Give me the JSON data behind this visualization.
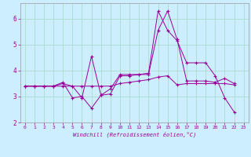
{
  "xlabel": "Windchill (Refroidissement éolien,°C)",
  "bg_color": "#cceeff",
  "grid_color": "#aaddcc",
  "line_color": "#990099",
  "xlim": [
    -0.5,
    23.5
  ],
  "ylim": [
    2.0,
    6.6
  ],
  "yticks": [
    2,
    3,
    4,
    5,
    6
  ],
  "xticks": [
    0,
    1,
    2,
    3,
    4,
    5,
    6,
    7,
    8,
    9,
    10,
    11,
    12,
    13,
    14,
    15,
    16,
    17,
    18,
    19,
    20,
    21,
    22,
    23
  ],
  "series": [
    {
      "x": [
        0,
        1,
        2,
        3,
        4,
        5,
        6,
        7,
        8,
        9,
        10,
        11,
        12,
        13,
        14,
        15,
        16,
        17,
        18,
        19,
        20,
        21,
        22
      ],
      "y": [
        3.4,
        3.4,
        3.4,
        3.4,
        3.55,
        2.95,
        3.0,
        2.55,
        3.05,
        3.1,
        3.8,
        3.8,
        3.85,
        3.9,
        6.3,
        5.55,
        5.15,
        4.3,
        4.3,
        4.3,
        3.8,
        2.95,
        2.4
      ]
    },
    {
      "x": [
        0,
        1,
        2,
        3,
        4,
        5,
        6,
        7,
        8,
        9,
        10,
        11,
        12,
        13,
        14,
        15,
        16,
        17,
        18,
        19,
        20,
        21,
        22
      ],
      "y": [
        3.4,
        3.4,
        3.4,
        3.4,
        3.5,
        3.4,
        2.95,
        4.55,
        3.05,
        3.3,
        3.85,
        3.85,
        3.85,
        3.85,
        5.55,
        6.3,
        5.2,
        3.6,
        3.6,
        3.6,
        3.55,
        3.7,
        3.5
      ]
    },
    {
      "x": [
        0,
        1,
        2,
        3,
        4,
        5,
        6,
        7,
        8,
        9,
        10,
        11,
        12,
        13,
        14,
        15,
        16,
        17,
        18,
        19,
        20,
        21,
        22
      ],
      "y": [
        3.4,
        3.4,
        3.4,
        3.4,
        3.4,
        3.4,
        3.4,
        3.4,
        3.4,
        3.4,
        3.5,
        3.55,
        3.6,
        3.65,
        3.75,
        3.8,
        3.45,
        3.5,
        3.5,
        3.5,
        3.5,
        3.5,
        3.45
      ]
    }
  ]
}
